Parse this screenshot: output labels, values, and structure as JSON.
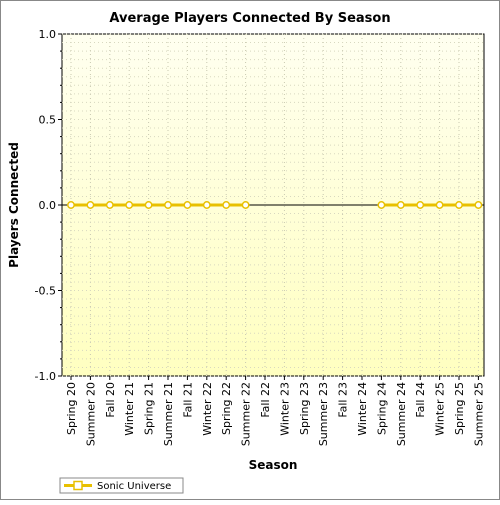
{
  "chart_data": {
    "type": "line",
    "title": "Average Players Connected By Season",
    "xlabel": "Season",
    "ylabel": "Players Connected",
    "ylim": [
      -1.0,
      1.0
    ],
    "yticks": [
      "1.0",
      "0.5",
      "0.0",
      "-0.5",
      "-1.0"
    ],
    "grid": true,
    "legend_position": "bottom-left",
    "categories": [
      "Spring 20",
      "Summer 20",
      "Fall 20",
      "Winter 21",
      "Spring 21",
      "Summer 21",
      "Fall 21",
      "Winter 22",
      "Spring 22",
      "Summer 22",
      "Fall 22",
      "Winter 23",
      "Spring 23",
      "Summer 23",
      "Fall 23",
      "Winter 24",
      "Spring 24",
      "Summer 24",
      "Fall 24",
      "Winter 25",
      "Spring 25",
      "Summer 25"
    ],
    "series": [
      {
        "name": "Sonic Universe",
        "color": "#e8c000",
        "values": [
          0,
          0,
          0,
          0,
          0,
          0,
          0,
          0,
          0,
          0,
          null,
          null,
          null,
          null,
          null,
          null,
          0,
          0,
          0,
          0,
          0,
          0
        ]
      }
    ]
  },
  "colors": {
    "plot_background_top": "#fffff0",
    "plot_background_bottom": "#ffffc0",
    "series": "#e8c000",
    "zero_line": "#000000"
  }
}
